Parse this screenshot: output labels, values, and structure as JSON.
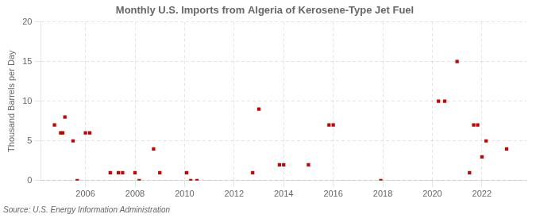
{
  "chart_data": {
    "type": "scatter",
    "title": "Monthly U.S. Imports from Algeria of Kerosene-Type Jet Fuel",
    "ylabel": "Thousand Barrels per Day",
    "annotation": "Source: U.S. Energy Information Administration",
    "color": "#cc0000",
    "marker": "square",
    "grid": true,
    "xlim": [
      2004.2,
      2023.8
    ],
    "xticks": [
      2006,
      2008,
      2010,
      2012,
      2014,
      2016,
      2018,
      2020,
      2022
    ],
    "ylim": [
      0,
      20
    ],
    "yticks": [
      0,
      5,
      10,
      15,
      20
    ],
    "x": [
      2004.75,
      2005.0,
      2005.08,
      2005.17,
      2005.5,
      2005.67,
      2006.0,
      2006.17,
      2007.0,
      2007.33,
      2007.5,
      2008.0,
      2008.17,
      2008.75,
      2009.0,
      2010.08,
      2010.25,
      2010.5,
      2012.75,
      2013.0,
      2013.83,
      2014.0,
      2015.0,
      2015.83,
      2016.0,
      2017.92,
      2020.25,
      2020.5,
      2021.0,
      2021.5,
      2021.67,
      2021.83,
      2022.0,
      2022.17,
      2023.0
    ],
    "values": [
      7,
      6,
      6,
      8,
      5,
      0,
      6,
      6,
      1,
      1,
      1,
      1,
      0,
      4,
      1,
      1,
      0,
      0,
      1,
      9,
      2,
      2,
      2,
      7,
      7,
      0,
      10,
      10,
      15,
      1,
      7,
      7,
      3,
      5,
      4
    ]
  }
}
